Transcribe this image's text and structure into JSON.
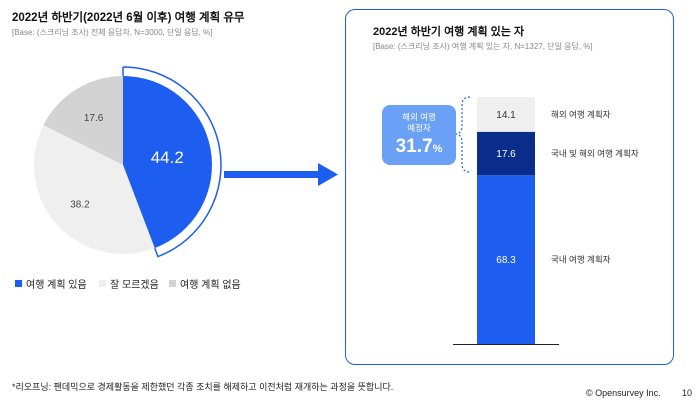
{
  "left": {
    "title": "2022년 하반기(2022년 6월 이후) 여행 계획 유무",
    "base": "[Base: (스크리닝 조사) 전체 응답자, N=3000, 단일 응답, %]"
  },
  "right": {
    "title": "2022년 하반기 여행 계획 있는 자",
    "base": "[Base: (스크리닝 조사) 여행 계획 있는 자, N=1327, 단일 응답, %]",
    "callout": {
      "line1": "해외 여행",
      "line2": "예정자",
      "value": "31.7",
      "unit": "%"
    }
  },
  "chart_data": [
    {
      "type": "pie",
      "categories": [
        "여행 계획 있음",
        "잘 모르겠음",
        "여행 계획 없음"
      ],
      "values": [
        44.2,
        38.2,
        17.6
      ],
      "colors": [
        "#1d5ef0",
        "#efefef",
        "#d3d3d3"
      ],
      "legend": "bottom"
    },
    {
      "type": "bar",
      "stacked": true,
      "categories": [
        "국내 여행 계획자",
        "국내 및 해외 여행 계획자",
        "해외 여행 계획자"
      ],
      "values": [
        68.3,
        17.6,
        14.1
      ],
      "colors": [
        "#1d5ef0",
        "#0a2c8a",
        "#efefef"
      ]
    }
  ],
  "footnote": "*리오프닝: 팬데믹으로 경제활동을 제한했던 각종 조치를 해제하고 이전처럼 재개하는 과정을 뜻합니다.",
  "copyright": "© Opensurvey Inc.",
  "page_number": "10"
}
